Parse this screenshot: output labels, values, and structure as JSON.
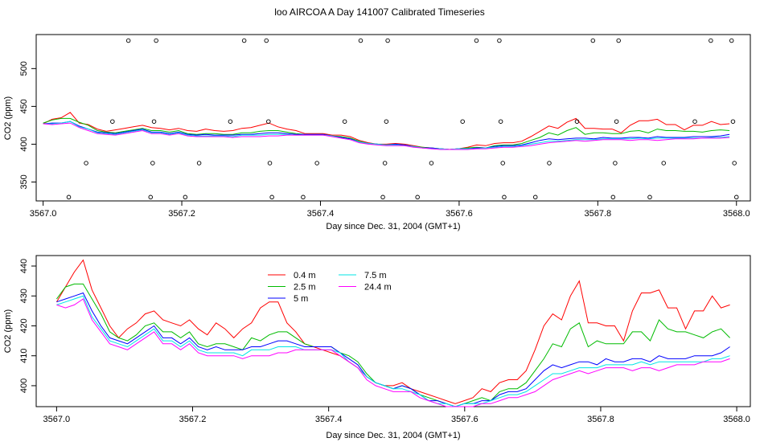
{
  "title": "loo AIRCOA A  Day 141007  Calibrated Timeseries",
  "chart_data": [
    {
      "type": "scatter",
      "title": "",
      "xlabel": "Day since Dec. 31, 2004 (GMT+1)",
      "ylabel": "CO2 (ppm)",
      "xlim": [
        3566.99,
        3568.02
      ],
      "ylim": [
        325,
        545
      ],
      "xticks": [
        "3567.0",
        "3567.2",
        "3567.4",
        "3567.6",
        "3567.8",
        "3568.0"
      ],
      "yticks": [
        "350",
        "400",
        "450",
        "500"
      ],
      "series_colors": [
        "#ff0000",
        "#00bb00",
        "#0000ff",
        "#00e5e5",
        "#ff00ff"
      ],
      "series": [
        {
          "values": [
            427,
            433,
            435,
            442,
            428,
            426,
            420,
            417,
            419,
            421,
            423,
            425,
            422,
            421,
            419,
            421,
            418,
            417,
            420,
            418,
            417,
            418,
            421,
            422,
            425,
            428,
            423,
            420,
            418,
            414,
            414,
            414,
            412,
            412,
            410,
            405,
            402,
            400,
            400,
            401,
            400,
            398,
            396,
            395,
            394,
            393,
            394,
            396,
            399,
            398,
            401,
            402,
            402,
            404,
            410,
            417,
            424,
            421,
            429,
            434,
            421,
            421,
            420,
            420,
            415,
            425,
            431,
            431,
            433,
            426,
            426,
            419,
            425,
            425,
            430,
            426,
            427
          ]
        },
        {
          "values": [
            428,
            432,
            434,
            434,
            429,
            425,
            418,
            416,
            415,
            417,
            419,
            421,
            418,
            418,
            416,
            418,
            414,
            413,
            414,
            414,
            413,
            413,
            415,
            415,
            417,
            418,
            418,
            416,
            414,
            413,
            413,
            413,
            411,
            410,
            408,
            404,
            401,
            400,
            399,
            400,
            399,
            397,
            396,
            395,
            394,
            393,
            394,
            395,
            396,
            395,
            398,
            399,
            399,
            401,
            405,
            409,
            415,
            412,
            418,
            422,
            413,
            415,
            415,
            414,
            414,
            417,
            418,
            415,
            420,
            418,
            418,
            417,
            417,
            416,
            418,
            419,
            418
          ]
        },
        {
          "values": [
            427,
            428,
            428,
            430,
            424,
            420,
            416,
            415,
            414,
            416,
            418,
            420,
            416,
            416,
            414,
            416,
            413,
            412,
            413,
            412,
            412,
            412,
            413,
            413,
            414,
            415,
            415,
            414,
            413,
            413,
            413,
            413,
            411,
            409,
            407,
            403,
            401,
            400,
            399,
            400,
            399,
            397,
            395,
            395,
            394,
            393,
            394,
            394,
            395,
            395,
            397,
            398,
            398,
            399,
            402,
            405,
            407,
            406,
            407,
            408,
            408,
            407,
            409,
            408,
            408,
            409,
            409,
            408,
            410,
            409,
            409,
            409,
            410,
            410,
            410,
            411,
            413
          ]
        },
        {
          "values": [
            427,
            427,
            428,
            430,
            423,
            420,
            415,
            414,
            413,
            415,
            417,
            419,
            415,
            415,
            413,
            415,
            412,
            411,
            411,
            411,
            411,
            410,
            412,
            412,
            412,
            413,
            413,
            413,
            412,
            412,
            412,
            412,
            411,
            408,
            406,
            403,
            401,
            400,
            399,
            399,
            398,
            397,
            395,
            394,
            394,
            393,
            394,
            394,
            394,
            395,
            396,
            397,
            397,
            398,
            400,
            402,
            404,
            404,
            405,
            406,
            406,
            406,
            407,
            407,
            407,
            407,
            408,
            407,
            408,
            408,
            408,
            408,
            408,
            408,
            409,
            409,
            410
          ]
        },
        {
          "values": [
            427,
            426,
            427,
            428,
            422,
            418,
            414,
            413,
            412,
            414,
            416,
            418,
            414,
            414,
            412,
            414,
            411,
            410,
            410,
            410,
            410,
            409,
            410,
            410,
            410,
            411,
            411,
            412,
            412,
            412,
            412,
            412,
            410,
            408,
            406,
            402,
            400,
            399,
            398,
            398,
            398,
            396,
            395,
            394,
            393,
            393,
            393,
            393,
            394,
            394,
            395,
            396,
            396,
            397,
            398,
            400,
            402,
            403,
            404,
            405,
            404,
            405,
            406,
            406,
            406,
            405,
            406,
            406,
            405,
            406,
            407,
            407,
            407,
            408,
            408,
            408,
            409
          ]
        }
      ],
      "x_start": 3567.0,
      "x_end": 3567.99,
      "points": [
        {
          "x": 3567.037,
          "y": 330
        },
        {
          "x": 3567.062,
          "y": 375
        },
        {
          "x": 3567.1,
          "y": 430
        },
        {
          "x": 3567.123,
          "y": 537
        },
        {
          "x": 3567.155,
          "y": 330
        },
        {
          "x": 3567.158,
          "y": 375
        },
        {
          "x": 3567.16,
          "y": 430
        },
        {
          "x": 3567.163,
          "y": 537
        },
        {
          "x": 3567.205,
          "y": 330
        },
        {
          "x": 3567.225,
          "y": 375
        },
        {
          "x": 3567.27,
          "y": 430
        },
        {
          "x": 3567.29,
          "y": 537
        },
        {
          "x": 3567.322,
          "y": 537
        },
        {
          "x": 3567.325,
          "y": 430
        },
        {
          "x": 3567.327,
          "y": 375
        },
        {
          "x": 3567.33,
          "y": 330
        },
        {
          "x": 3567.375,
          "y": 330
        },
        {
          "x": 3567.395,
          "y": 375
        },
        {
          "x": 3567.435,
          "y": 430
        },
        {
          "x": 3567.458,
          "y": 537
        },
        {
          "x": 3567.49,
          "y": 330
        },
        {
          "x": 3567.493,
          "y": 375
        },
        {
          "x": 3567.495,
          "y": 430
        },
        {
          "x": 3567.497,
          "y": 537
        },
        {
          "x": 3567.54,
          "y": 330
        },
        {
          "x": 3567.56,
          "y": 375
        },
        {
          "x": 3567.605,
          "y": 430
        },
        {
          "x": 3567.625,
          "y": 537
        },
        {
          "x": 3567.658,
          "y": 537
        },
        {
          "x": 3567.66,
          "y": 430
        },
        {
          "x": 3567.663,
          "y": 375
        },
        {
          "x": 3567.665,
          "y": 330
        },
        {
          "x": 3567.71,
          "y": 330
        },
        {
          "x": 3567.73,
          "y": 375
        },
        {
          "x": 3567.77,
          "y": 430
        },
        {
          "x": 3567.793,
          "y": 537
        },
        {
          "x": 3567.822,
          "y": 330
        },
        {
          "x": 3567.825,
          "y": 375
        },
        {
          "x": 3567.827,
          "y": 430
        },
        {
          "x": 3567.83,
          "y": 537
        },
        {
          "x": 3567.875,
          "y": 330
        },
        {
          "x": 3567.895,
          "y": 375
        },
        {
          "x": 3567.94,
          "y": 430
        },
        {
          "x": 3567.963,
          "y": 537
        },
        {
          "x": 3567.993,
          "y": 537
        },
        {
          "x": 3567.995,
          "y": 430
        },
        {
          "x": 3567.997,
          "y": 375
        },
        {
          "x": 3568.0,
          "y": 330
        }
      ],
      "grid": false
    },
    {
      "type": "line",
      "title": "",
      "xlabel": "Day since Dec. 31, 2004 (GMT+1)",
      "ylabel": "CO2 (ppm)",
      "xlim": [
        3566.97,
        3568.02
      ],
      "ylim": [
        393,
        443.5
      ],
      "xticks": [
        "3567.0",
        "3567.2",
        "3567.4",
        "3567.6",
        "3567.8",
        "3568.0"
      ],
      "yticks": [
        "400",
        "410",
        "420",
        "430",
        "440"
      ],
      "x_start": 3567.0,
      "x_end": 3567.99,
      "grid": false,
      "legend_position": "top-left",
      "series": [
        {
          "name": "0.4 m",
          "color": "#ff0000",
          "values": [
            428,
            433,
            438,
            442,
            432,
            426,
            420,
            416,
            419,
            421,
            424,
            425,
            422,
            421,
            420,
            422,
            419,
            417,
            421,
            419,
            416,
            419,
            421,
            426,
            428,
            428,
            421,
            418,
            414,
            413,
            412,
            411,
            410,
            408,
            406,
            403,
            401,
            400,
            400,
            401,
            399,
            398,
            397,
            396,
            395,
            394,
            395,
            396,
            399,
            398,
            401,
            402,
            402,
            405,
            412,
            420,
            424,
            422,
            430,
            435,
            421,
            421,
            420,
            420,
            415,
            425,
            431,
            431,
            432,
            426,
            426,
            419,
            425,
            425,
            430,
            426,
            427
          ]
        },
        {
          "name": "2.5 m",
          "color": "#00bb00",
          "values": [
            429,
            433,
            434,
            434,
            429,
            424,
            418,
            416,
            415,
            417,
            420,
            421,
            418,
            418,
            416,
            418,
            414,
            413,
            414,
            414,
            413,
            412,
            416,
            415,
            417,
            418,
            418,
            416,
            414,
            413,
            413,
            413,
            411,
            410,
            408,
            404,
            401,
            400,
            399,
            400,
            399,
            397,
            396,
            395,
            394,
            393,
            394,
            395,
            396,
            395,
            398,
            399,
            399,
            401,
            405,
            409,
            414,
            413,
            419,
            421,
            413,
            415,
            414,
            414,
            414,
            418,
            418,
            415,
            422,
            419,
            418,
            418,
            417,
            416,
            418,
            419,
            416
          ]
        },
        {
          "name": "5 m",
          "color": "#0000ff",
          "values": [
            428,
            429,
            430,
            431,
            425,
            420,
            416,
            415,
            414,
            416,
            418,
            420,
            416,
            416,
            414,
            416,
            413,
            412,
            413,
            412,
            412,
            412,
            413,
            413,
            414,
            415,
            415,
            414,
            413,
            413,
            413,
            413,
            411,
            409,
            407,
            403,
            401,
            400,
            399,
            400,
            399,
            397,
            395,
            395,
            394,
            393,
            394,
            394,
            395,
            395,
            397,
            398,
            398,
            399,
            402,
            405,
            407,
            406,
            407,
            408,
            408,
            407,
            409,
            408,
            408,
            409,
            409,
            408,
            410,
            409,
            409,
            409,
            410,
            410,
            410,
            411,
            413
          ]
        },
        {
          "name": "7.5 m",
          "color": "#00e5e5",
          "values": [
            427,
            428,
            429,
            430,
            423,
            419,
            415,
            414,
            413,
            415,
            417,
            419,
            415,
            415,
            413,
            415,
            412,
            411,
            411,
            411,
            411,
            410,
            412,
            412,
            412,
            413,
            413,
            413,
            412,
            412,
            412,
            412,
            411,
            408,
            406,
            403,
            401,
            400,
            399,
            399,
            398,
            397,
            395,
            394,
            394,
            393,
            394,
            394,
            394,
            395,
            396,
            397,
            397,
            398,
            400,
            402,
            404,
            404,
            405,
            406,
            406,
            406,
            407,
            407,
            407,
            407,
            408,
            407,
            408,
            408,
            408,
            408,
            408,
            408,
            409,
            409,
            410
          ]
        },
        {
          "name": "24.4 m",
          "color": "#ff00ff",
          "values": [
            427,
            426,
            427,
            429,
            422,
            418,
            414,
            413,
            412,
            414,
            416,
            418,
            414,
            414,
            412,
            414,
            411,
            410,
            410,
            410,
            410,
            409,
            410,
            410,
            410,
            411,
            411,
            412,
            412,
            412,
            412,
            412,
            410,
            408,
            406,
            402,
            400,
            399,
            398,
            398,
            398,
            396,
            395,
            394,
            393,
            393,
            393,
            393,
            394,
            394,
            395,
            396,
            396,
            397,
            398,
            400,
            402,
            403,
            404,
            405,
            404,
            405,
            406,
            406,
            406,
            405,
            406,
            406,
            405,
            406,
            407,
            407,
            407,
            408,
            408,
            408,
            409
          ]
        }
      ]
    }
  ]
}
